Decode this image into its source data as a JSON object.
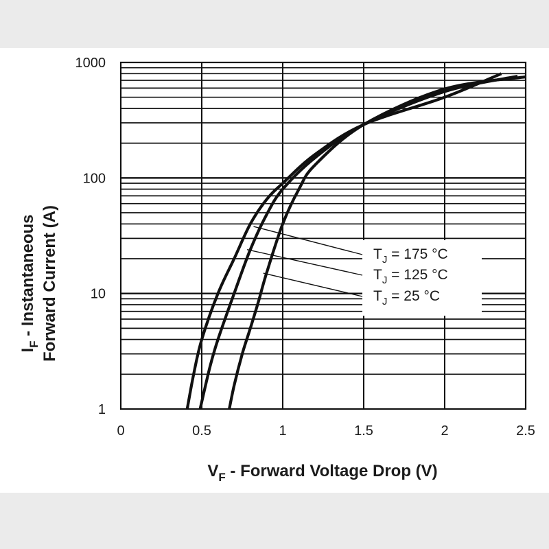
{
  "chart_data": {
    "type": "line",
    "title": "",
    "xlabel": {
      "main": "V",
      "sub": "F",
      "rest": " - Forward Voltage Drop (V)"
    },
    "ylabel": {
      "line1": {
        "main": "I",
        "sub": "F",
        "rest": " - Instantaneous"
      },
      "line2": "Forward Current (A)"
    },
    "x_range": [
      0,
      2.5
    ],
    "y_range": [
      1,
      1000
    ],
    "y_scale": "log",
    "grid": true,
    "x_ticks": [
      "0",
      "0.5",
      "1",
      "1.5",
      "2",
      "2.5"
    ],
    "x_tick_values": [
      0,
      0.5,
      1,
      1.5,
      2,
      2.5
    ],
    "y_ticks": [
      "1",
      "10",
      "100",
      "1000"
    ],
    "y_tick_values": [
      1,
      10,
      100,
      1000
    ],
    "series": [
      {
        "name": "TJ = 175 °C",
        "label": {
          "main": "T",
          "sub": "J",
          "rest": " = 175 °C"
        },
        "points": [
          [
            0.41,
            1
          ],
          [
            0.45,
            2
          ],
          [
            0.5,
            4
          ],
          [
            0.6,
            10
          ],
          [
            0.7,
            20
          ],
          [
            0.8,
            40
          ],
          [
            0.9,
            65
          ],
          [
            1.0,
            90
          ],
          [
            1.2,
            160
          ],
          [
            1.5,
            290
          ],
          [
            2.0,
            500
          ],
          [
            2.35,
            800
          ]
        ]
      },
      {
        "name": "TJ = 125 °C",
        "label": {
          "main": "T",
          "sub": "J",
          "rest": " = 125 °C"
        },
        "points": [
          [
            0.49,
            1
          ],
          [
            0.55,
            2.3
          ],
          [
            0.6,
            4
          ],
          [
            0.7,
            10
          ],
          [
            0.8,
            24
          ],
          [
            0.9,
            48
          ],
          [
            1.0,
            80
          ],
          [
            1.2,
            150
          ],
          [
            1.5,
            290
          ],
          [
            2.0,
            560
          ],
          [
            2.45,
            760
          ]
        ]
      },
      {
        "name": "TJ = 25 °C",
        "label": {
          "main": "T",
          "sub": "J",
          "rest": " = 25 °C"
        },
        "points": [
          [
            0.67,
            1
          ],
          [
            0.7,
            1.6
          ],
          [
            0.75,
            3
          ],
          [
            0.8,
            5
          ],
          [
            0.85,
            8.5
          ],
          [
            0.9,
            15
          ],
          [
            1.0,
            40
          ],
          [
            1.1,
            80
          ],
          [
            1.2,
            130
          ],
          [
            1.5,
            290
          ],
          [
            2.0,
            590
          ],
          [
            2.5,
            750
          ]
        ]
      }
    ],
    "annotations": {
      "pointers": [
        "TJ = 175 °C",
        "TJ = 125 °C",
        "TJ = 25 °C"
      ]
    }
  }
}
